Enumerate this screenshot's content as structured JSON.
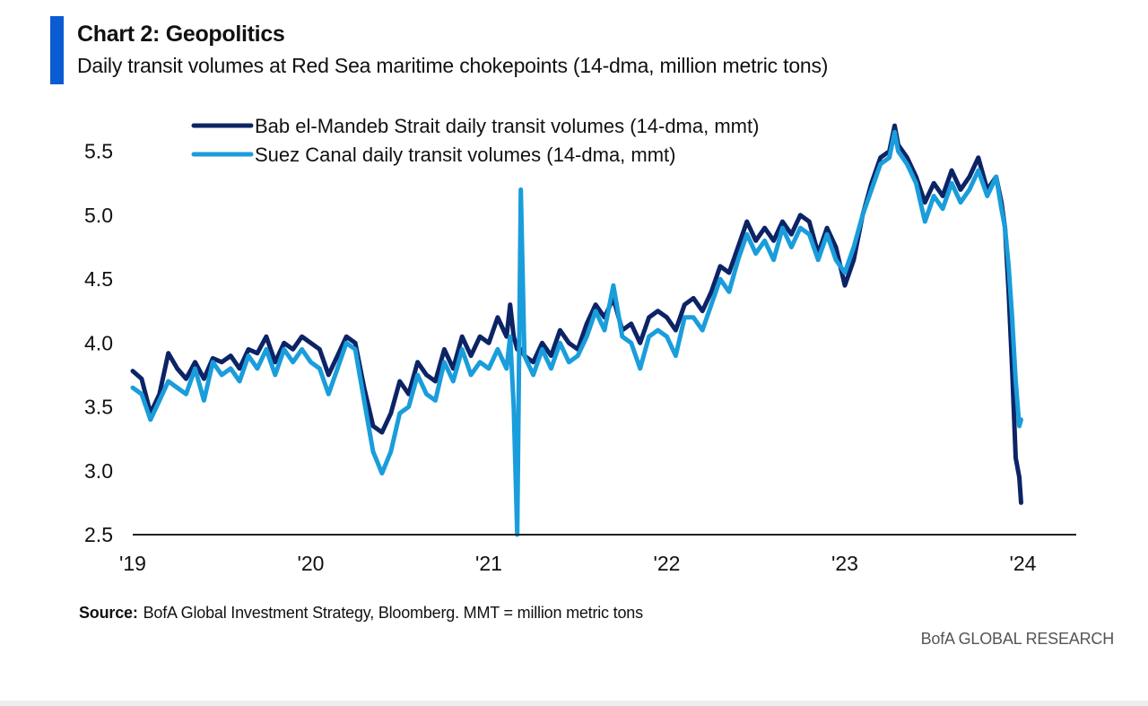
{
  "header": {
    "title": "Chart 2: Geopolitics",
    "subtitle": "Daily transit volumes at Red Sea maritime chokepoints (14-dma, million metric tons)"
  },
  "footer": {
    "source_label": "Source:",
    "source_text": "BofA Global Investment Strategy, Bloomberg. MMT = million metric tons",
    "brand": "BofA GLOBAL RESEARCH"
  },
  "colors": {
    "accent": "#0b5bd3",
    "bab": "#0c2466",
    "suez": "#1a9ddb"
  },
  "chart_data": {
    "type": "line",
    "title": "Chart 2: Geopolitics",
    "xlabel": "",
    "ylabel": "",
    "xlim": [
      2019,
      2024.3
    ],
    "ylim": [
      2.5,
      5.75
    ],
    "yticks": [
      2.5,
      3.0,
      3.5,
      4.0,
      4.5,
      5.0,
      5.5
    ],
    "ytick_labels": [
      "2.5",
      "3.0",
      "3.5",
      "4.0",
      "4.5",
      "5.0",
      "5.5"
    ],
    "xticks": [
      2019,
      2020,
      2021,
      2022,
      2023,
      2024
    ],
    "xtick_labels": [
      "'19",
      "'20",
      "'21",
      "'22",
      "'23",
      "'24"
    ],
    "legend_position": "top-left",
    "grid": false,
    "series": [
      {
        "name": "Bab el-Mandeb Strait daily transit volumes (14-dma, mmt)",
        "points": [
          [
            2019.0,
            3.78
          ],
          [
            2019.05,
            3.72
          ],
          [
            2019.1,
            3.45
          ],
          [
            2019.15,
            3.6
          ],
          [
            2019.2,
            3.92
          ],
          [
            2019.25,
            3.8
          ],
          [
            2019.3,
            3.72
          ],
          [
            2019.35,
            3.85
          ],
          [
            2019.4,
            3.72
          ],
          [
            2019.45,
            3.88
          ],
          [
            2019.5,
            3.85
          ],
          [
            2019.55,
            3.9
          ],
          [
            2019.6,
            3.8
          ],
          [
            2019.65,
            3.95
          ],
          [
            2019.7,
            3.92
          ],
          [
            2019.75,
            4.05
          ],
          [
            2019.8,
            3.85
          ],
          [
            2019.85,
            4.0
          ],
          [
            2019.9,
            3.95
          ],
          [
            2019.95,
            4.05
          ],
          [
            2020.0,
            4.0
          ],
          [
            2020.05,
            3.95
          ],
          [
            2020.1,
            3.75
          ],
          [
            2020.15,
            3.9
          ],
          [
            2020.2,
            4.05
          ],
          [
            2020.25,
            4.0
          ],
          [
            2020.3,
            3.65
          ],
          [
            2020.35,
            3.35
          ],
          [
            2020.4,
            3.3
          ],
          [
            2020.45,
            3.45
          ],
          [
            2020.5,
            3.7
          ],
          [
            2020.55,
            3.6
          ],
          [
            2020.6,
            3.85
          ],
          [
            2020.65,
            3.75
          ],
          [
            2020.7,
            3.7
          ],
          [
            2020.75,
            3.95
          ],
          [
            2020.8,
            3.8
          ],
          [
            2020.85,
            4.05
          ],
          [
            2020.9,
            3.9
          ],
          [
            2020.95,
            4.05
          ],
          [
            2021.0,
            4.0
          ],
          [
            2021.05,
            4.2
          ],
          [
            2021.1,
            4.05
          ],
          [
            2021.12,
            4.3
          ],
          [
            2021.14,
            4.05
          ],
          [
            2021.16,
            3.95
          ],
          [
            2021.18,
            3.95
          ],
          [
            2021.2,
            3.9
          ],
          [
            2021.25,
            3.85
          ],
          [
            2021.3,
            4.0
          ],
          [
            2021.35,
            3.9
          ],
          [
            2021.4,
            4.1
          ],
          [
            2021.45,
            4.0
          ],
          [
            2021.5,
            3.95
          ],
          [
            2021.55,
            4.15
          ],
          [
            2021.6,
            4.3
          ],
          [
            2021.65,
            4.2
          ],
          [
            2021.7,
            4.35
          ],
          [
            2021.75,
            4.1
          ],
          [
            2021.8,
            4.15
          ],
          [
            2021.85,
            4.0
          ],
          [
            2021.9,
            4.2
          ],
          [
            2021.95,
            4.25
          ],
          [
            2022.0,
            4.2
          ],
          [
            2022.05,
            4.1
          ],
          [
            2022.1,
            4.3
          ],
          [
            2022.15,
            4.35
          ],
          [
            2022.2,
            4.25
          ],
          [
            2022.25,
            4.4
          ],
          [
            2022.3,
            4.6
          ],
          [
            2022.35,
            4.55
          ],
          [
            2022.4,
            4.75
          ],
          [
            2022.45,
            4.95
          ],
          [
            2022.5,
            4.8
          ],
          [
            2022.55,
            4.9
          ],
          [
            2022.6,
            4.8
          ],
          [
            2022.65,
            4.95
          ],
          [
            2022.7,
            4.85
          ],
          [
            2022.75,
            5.0
          ],
          [
            2022.8,
            4.95
          ],
          [
            2022.85,
            4.7
          ],
          [
            2022.9,
            4.9
          ],
          [
            2022.95,
            4.75
          ],
          [
            2023.0,
            4.45
          ],
          [
            2023.05,
            4.65
          ],
          [
            2023.1,
            5.0
          ],
          [
            2023.15,
            5.25
          ],
          [
            2023.2,
            5.45
          ],
          [
            2023.25,
            5.5
          ],
          [
            2023.28,
            5.7
          ],
          [
            2023.3,
            5.55
          ],
          [
            2023.35,
            5.45
          ],
          [
            2023.4,
            5.3
          ],
          [
            2023.45,
            5.1
          ],
          [
            2023.5,
            5.25
          ],
          [
            2023.55,
            5.15
          ],
          [
            2023.6,
            5.35
          ],
          [
            2023.65,
            5.2
          ],
          [
            2023.7,
            5.3
          ],
          [
            2023.75,
            5.45
          ],
          [
            2023.8,
            5.2
          ],
          [
            2023.85,
            5.3
          ],
          [
            2023.88,
            5.1
          ],
          [
            2023.9,
            4.9
          ],
          [
            2023.92,
            4.4
          ],
          [
            2023.94,
            3.8
          ],
          [
            2023.96,
            3.1
          ],
          [
            2023.98,
            2.95
          ],
          [
            2023.99,
            2.75
          ]
        ]
      },
      {
        "name": "Suez Canal daily transit volumes (14-dma, mmt)",
        "points": [
          [
            2019.0,
            3.65
          ],
          [
            2019.05,
            3.6
          ],
          [
            2019.1,
            3.4
          ],
          [
            2019.15,
            3.55
          ],
          [
            2019.2,
            3.7
          ],
          [
            2019.25,
            3.65
          ],
          [
            2019.3,
            3.6
          ],
          [
            2019.35,
            3.8
          ],
          [
            2019.4,
            3.55
          ],
          [
            2019.45,
            3.85
          ],
          [
            2019.5,
            3.75
          ],
          [
            2019.55,
            3.8
          ],
          [
            2019.6,
            3.7
          ],
          [
            2019.65,
            3.9
          ],
          [
            2019.7,
            3.8
          ],
          [
            2019.75,
            3.95
          ],
          [
            2019.8,
            3.75
          ],
          [
            2019.85,
            3.95
          ],
          [
            2019.9,
            3.85
          ],
          [
            2019.95,
            3.95
          ],
          [
            2020.0,
            3.85
          ],
          [
            2020.05,
            3.8
          ],
          [
            2020.1,
            3.6
          ],
          [
            2020.15,
            3.8
          ],
          [
            2020.2,
            4.0
          ],
          [
            2020.25,
            3.95
          ],
          [
            2020.3,
            3.55
          ],
          [
            2020.35,
            3.15
          ],
          [
            2020.4,
            2.98
          ],
          [
            2020.45,
            3.15
          ],
          [
            2020.5,
            3.45
          ],
          [
            2020.55,
            3.5
          ],
          [
            2020.6,
            3.75
          ],
          [
            2020.65,
            3.6
          ],
          [
            2020.7,
            3.55
          ],
          [
            2020.75,
            3.85
          ],
          [
            2020.8,
            3.7
          ],
          [
            2020.85,
            3.95
          ],
          [
            2020.9,
            3.75
          ],
          [
            2020.95,
            3.85
          ],
          [
            2021.0,
            3.8
          ],
          [
            2021.05,
            3.95
          ],
          [
            2021.1,
            3.8
          ],
          [
            2021.12,
            4.05
          ],
          [
            2021.14,
            3.5
          ],
          [
            2021.16,
            2.5
          ],
          [
            2021.18,
            5.2
          ],
          [
            2021.2,
            3.9
          ],
          [
            2021.25,
            3.75
          ],
          [
            2021.3,
            3.95
          ],
          [
            2021.35,
            3.8
          ],
          [
            2021.4,
            4.0
          ],
          [
            2021.45,
            3.85
          ],
          [
            2021.5,
            3.9
          ],
          [
            2021.55,
            4.05
          ],
          [
            2021.6,
            4.25
          ],
          [
            2021.65,
            4.1
          ],
          [
            2021.7,
            4.45
          ],
          [
            2021.75,
            4.05
          ],
          [
            2021.8,
            4.0
          ],
          [
            2021.85,
            3.8
          ],
          [
            2021.9,
            4.05
          ],
          [
            2021.95,
            4.1
          ],
          [
            2022.0,
            4.05
          ],
          [
            2022.05,
            3.9
          ],
          [
            2022.1,
            4.2
          ],
          [
            2022.15,
            4.2
          ],
          [
            2022.2,
            4.1
          ],
          [
            2022.25,
            4.3
          ],
          [
            2022.3,
            4.5
          ],
          [
            2022.35,
            4.4
          ],
          [
            2022.4,
            4.65
          ],
          [
            2022.45,
            4.85
          ],
          [
            2022.5,
            4.7
          ],
          [
            2022.55,
            4.8
          ],
          [
            2022.6,
            4.65
          ],
          [
            2022.65,
            4.9
          ],
          [
            2022.7,
            4.75
          ],
          [
            2022.75,
            4.9
          ],
          [
            2022.8,
            4.85
          ],
          [
            2022.85,
            4.65
          ],
          [
            2022.9,
            4.85
          ],
          [
            2022.95,
            4.65
          ],
          [
            2023.0,
            4.55
          ],
          [
            2023.05,
            4.75
          ],
          [
            2023.1,
            5.0
          ],
          [
            2023.15,
            5.2
          ],
          [
            2023.2,
            5.4
          ],
          [
            2023.25,
            5.45
          ],
          [
            2023.28,
            5.65
          ],
          [
            2023.3,
            5.5
          ],
          [
            2023.35,
            5.4
          ],
          [
            2023.4,
            5.25
          ],
          [
            2023.45,
            4.95
          ],
          [
            2023.5,
            5.15
          ],
          [
            2023.55,
            5.05
          ],
          [
            2023.6,
            5.25
          ],
          [
            2023.65,
            5.1
          ],
          [
            2023.7,
            5.2
          ],
          [
            2023.75,
            5.35
          ],
          [
            2023.8,
            5.15
          ],
          [
            2023.85,
            5.3
          ],
          [
            2023.88,
            5.05
          ],
          [
            2023.9,
            4.9
          ],
          [
            2023.92,
            4.6
          ],
          [
            2023.94,
            4.2
          ],
          [
            2023.96,
            3.7
          ],
          [
            2023.98,
            3.35
          ],
          [
            2023.99,
            3.4
          ]
        ]
      }
    ]
  }
}
